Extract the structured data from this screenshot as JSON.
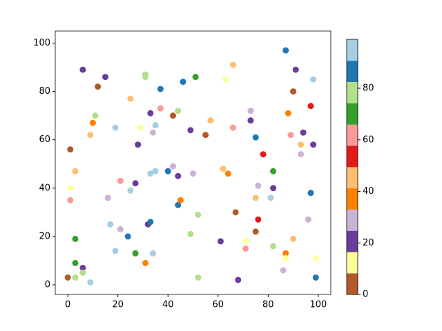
{
  "chart_data": {
    "type": "scatter",
    "x": [
      0,
      1,
      1,
      1,
      3,
      3,
      3,
      3,
      6,
      6,
      6,
      9,
      9,
      10,
      11,
      12,
      15,
      16,
      17,
      19,
      19,
      21,
      21,
      24,
      25,
      25,
      27,
      27,
      28,
      29,
      31,
      31,
      31,
      32,
      33,
      33,
      33,
      34,
      34,
      35,
      35,
      37,
      37,
      40,
      42,
      42,
      44,
      44,
      44,
      45,
      46,
      49,
      49,
      50,
      51,
      52,
      52,
      55,
      57,
      61,
      62,
      63,
      64,
      66,
      66,
      67,
      68,
      71,
      71,
      73,
      73,
      75,
      75,
      75,
      76,
      76,
      78,
      81,
      82,
      82,
      82,
      86,
      87,
      87,
      87,
      88,
      89,
      90,
      90,
      91,
      93,
      93,
      94,
      96,
      97,
      97,
      98,
      98,
      99,
      99
    ],
    "y": [
      3,
      56,
      40,
      35,
      47,
      19,
      9,
      3,
      89,
      7,
      5,
      1,
      62,
      67,
      70,
      82,
      86,
      36,
      25,
      65,
      14,
      43,
      23,
      20,
      77,
      39,
      42,
      13,
      58,
      65,
      87,
      86,
      9,
      25,
      26,
      71,
      46,
      63,
      13,
      66,
      47,
      81,
      73,
      47,
      70,
      49,
      72,
      45,
      33,
      35,
      84,
      64,
      21,
      46,
      86,
      29,
      3,
      62,
      68,
      18,
      48,
      85,
      46,
      91,
      65,
      30,
      2,
      18,
      15,
      72,
      68,
      61,
      36,
      22,
      41,
      27,
      54,
      36,
      47,
      40,
      16,
      6,
      97,
      13,
      11,
      71,
      62,
      80,
      19,
      89,
      58,
      54,
      63,
      27,
      74,
      38,
      85,
      58,
      3,
      11
    ],
    "c": [
      4,
      4,
      12,
      62,
      46,
      70,
      70,
      79,
      21,
      21,
      79,
      95,
      46,
      37,
      79,
      4,
      21,
      29,
      95,
      95,
      95,
      62,
      29,
      87,
      46,
      95,
      21,
      70,
      21,
      12,
      79,
      79,
      37,
      21,
      87,
      21,
      95,
      29,
      95,
      95,
      95,
      87,
      62,
      87,
      4,
      29,
      79,
      21,
      87,
      37,
      87,
      21,
      79,
      29,
      70,
      79,
      79,
      4,
      46,
      21,
      46,
      12,
      37,
      46,
      62,
      4,
      21,
      12,
      62,
      29,
      21,
      87,
      46,
      4,
      29,
      54,
      54,
      95,
      70,
      21,
      79,
      29,
      87,
      37,
      12,
      37,
      62,
      4,
      46,
      21,
      46,
      29,
      21,
      29,
      54,
      87,
      95,
      21,
      87,
      12
    ],
    "colormap": [
      "#b15928",
      "#ffff99",
      "#6a3d9a",
      "#cab2d6",
      "#ff7f00",
      "#fdbf6f",
      "#e31a1c",
      "#fb9a99",
      "#33a02c",
      "#b2df8a",
      "#1f78b4",
      "#a6cee3"
    ],
    "clim": [
      0,
      99
    ],
    "cticks": [
      0,
      20,
      40,
      60,
      80
    ],
    "xlim": [
      -5,
      105
    ],
    "ylim": [
      -4,
      105
    ],
    "xticks": [
      0,
      20,
      40,
      60,
      80,
      100
    ],
    "yticks": [
      0,
      20,
      40,
      60,
      80,
      100
    ]
  }
}
